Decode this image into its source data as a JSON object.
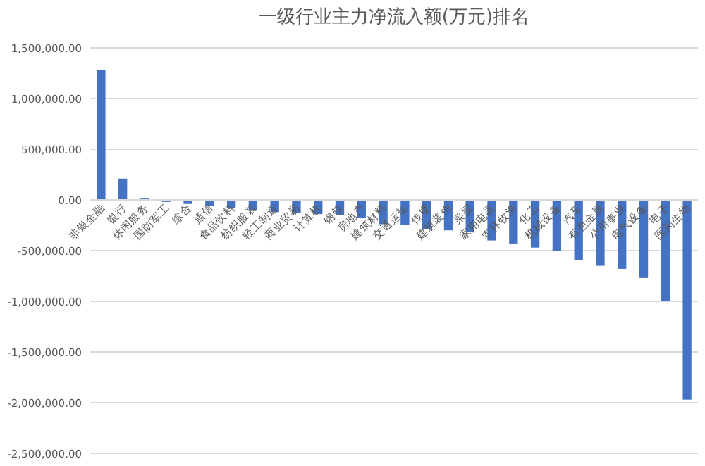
{
  "chart_data": {
    "type": "bar",
    "title": "一级行业主力净流入额(万元)排名",
    "categories": [
      "非银金融",
      "银行",
      "休闲服务",
      "国防军工",
      "综合",
      "通信",
      "食品饮料",
      "纺织服装",
      "轻工制造",
      "商业贸易",
      "计算机",
      "钢铁",
      "房地产",
      "建筑材料",
      "交通运输",
      "传媒",
      "建筑装饰",
      "采掘",
      "家用电器",
      "农林牧渔",
      "化工",
      "机械设备",
      "汽车",
      "有色金属",
      "公用事业",
      "电气设备",
      "电子",
      "医药生物"
    ],
    "values": [
      1280000,
      210000,
      20000,
      -20000,
      -40000,
      -60000,
      -80000,
      -100000,
      -120000,
      -130000,
      -140000,
      -150000,
      -180000,
      -240000,
      -250000,
      -290000,
      -300000,
      -320000,
      -400000,
      -430000,
      -470000,
      -500000,
      -590000,
      -650000,
      -680000,
      -770000,
      -1000000,
      -1970000
    ],
    "color": "#4472c4",
    "ylim": [
      -2500000,
      1500000
    ],
    "yticks": [
      {
        "value": -2500000,
        "label": "-2,500,000.00"
      },
      {
        "value": -2000000,
        "label": "-2,000,000.00"
      },
      {
        "value": -1500000,
        "label": "-1,500,000.00"
      },
      {
        "value": -1000000,
        "label": "-1,000,000.00"
      },
      {
        "value": -500000,
        "label": "-500,000.00"
      },
      {
        "value": 0,
        "label": "0.00"
      },
      {
        "value": 500000,
        "label": "500,000.00"
      },
      {
        "value": 1000000,
        "label": "1,000,000.00"
      },
      {
        "value": 1500000,
        "label": "1,500,000.00"
      }
    ],
    "grid": "y"
  }
}
